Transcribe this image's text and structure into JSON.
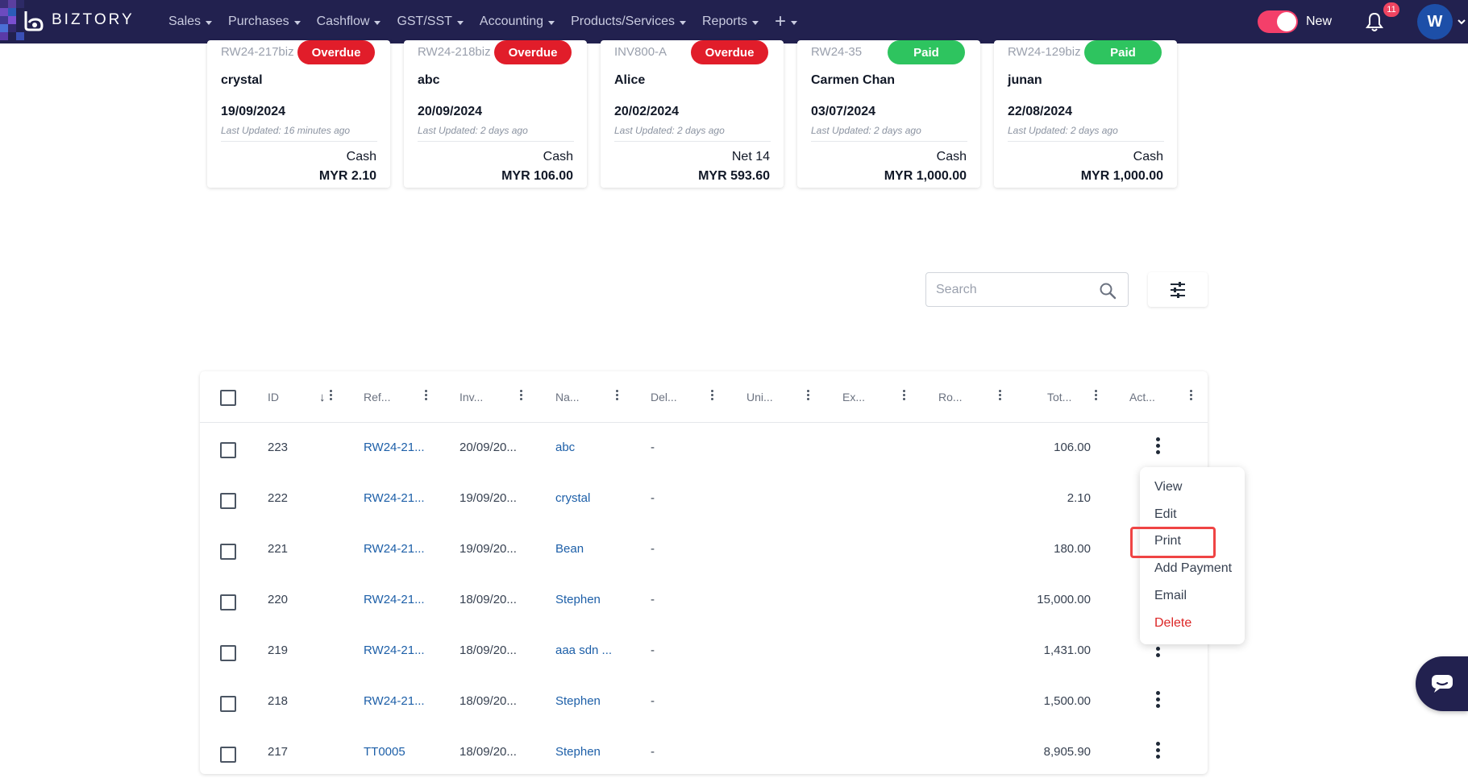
{
  "brand": {
    "name": "BIZTORY"
  },
  "nav": {
    "items": [
      {
        "label": "Sales"
      },
      {
        "label": "Purchases"
      },
      {
        "label": "Cashflow"
      },
      {
        "label": "GST/SST"
      },
      {
        "label": "Accounting"
      },
      {
        "label": "Products/Services"
      },
      {
        "label": "Reports"
      }
    ],
    "plus": "+",
    "toggle_label": "New",
    "notification_count": "11",
    "avatar_initial": "W"
  },
  "cards": [
    {
      "ref": "RW24-217biz",
      "status": "Overdue",
      "name": "crystal",
      "date": "19/09/2024",
      "updated": "Last Updated: 16 minutes ago",
      "terms": "Cash",
      "amount": "MYR 2.10"
    },
    {
      "ref": "RW24-218biz",
      "status": "Overdue",
      "name": "abc",
      "date": "20/09/2024",
      "updated": "Last Updated: 2 days ago",
      "terms": "Cash",
      "amount": "MYR 106.00"
    },
    {
      "ref": "INV800-A",
      "status": "Overdue",
      "name": "Alice",
      "date": "20/02/2024",
      "updated": "Last Updated: 2 days ago",
      "terms": "Net 14",
      "amount": "MYR 593.60"
    },
    {
      "ref": "RW24-35",
      "status": "Paid",
      "name": "Carmen Chan",
      "date": "03/07/2024",
      "updated": "Last Updated: 2 days ago",
      "terms": "Cash",
      "amount": "MYR 1,000.00"
    },
    {
      "ref": "RW24-129biz",
      "status": "Paid",
      "name": "junan",
      "date": "22/08/2024",
      "updated": "Last Updated: 2 days ago",
      "terms": "Cash",
      "amount": "MYR 1,000.00"
    }
  ],
  "search": {
    "placeholder": "Search"
  },
  "table": {
    "columns": [
      "ID",
      "Ref...",
      "Inv...",
      "Na...",
      "Del...",
      "Uni...",
      "Ex...",
      "Ro...",
      "Tot...",
      "Act..."
    ],
    "sort_icon": "↓",
    "rows": [
      {
        "id": "223",
        "ref": "RW24-21...",
        "inv": "20/09/20...",
        "name": "abc",
        "del": "-",
        "total": "106.00"
      },
      {
        "id": "222",
        "ref": "RW24-21...",
        "inv": "19/09/20...",
        "name": "crystal",
        "del": "-",
        "total": "2.10"
      },
      {
        "id": "221",
        "ref": "RW24-21...",
        "inv": "19/09/20...",
        "name": "Bean",
        "del": "-",
        "total": "180.00"
      },
      {
        "id": "220",
        "ref": "RW24-21...",
        "inv": "18/09/20...",
        "name": "Stephen",
        "del": "-",
        "total": "15,000.00"
      },
      {
        "id": "219",
        "ref": "RW24-21...",
        "inv": "18/09/20...",
        "name": "aaa sdn ...",
        "del": "-",
        "total": "1,431.00"
      },
      {
        "id": "218",
        "ref": "RW24-21...",
        "inv": "18/09/20...",
        "name": "Stephen",
        "del": "-",
        "total": "1,500.00"
      },
      {
        "id": "217",
        "ref": "TT0005",
        "inv": "18/09/20...",
        "name": "Stephen",
        "del": "-",
        "total": "8,905.90"
      }
    ]
  },
  "action_menu": {
    "items": [
      "View",
      "Edit",
      "Print",
      "Add Payment",
      "Email",
      "Delete"
    ]
  },
  "colors": {
    "navbar": "#22214f",
    "overdue": "#e11d2a",
    "paid": "#2ec45f",
    "link": "#1d5fa8",
    "danger": "#dc2626",
    "highlight": "#ef4444"
  }
}
